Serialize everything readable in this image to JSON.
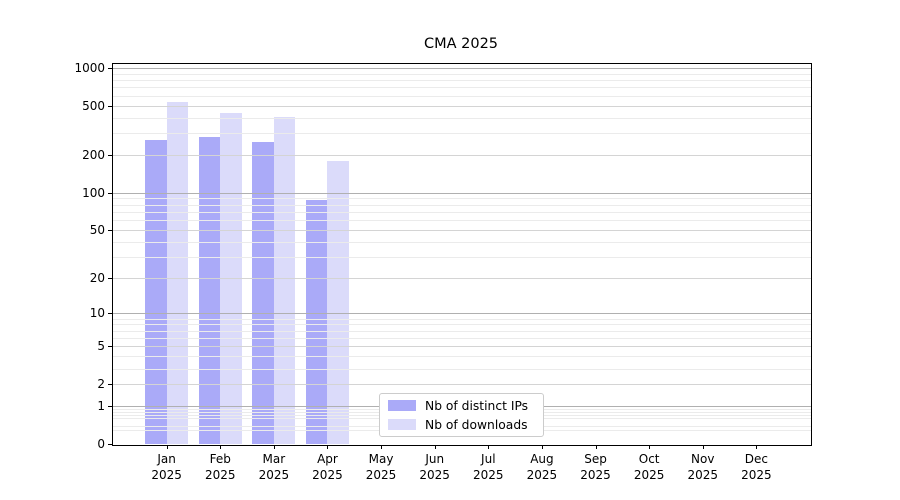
{
  "chart_data": {
    "type": "bar",
    "title": "CMA 2025",
    "categories": [
      "Jan 2025",
      "Feb 2025",
      "Mar 2025",
      "Apr 2025",
      "May 2025",
      "Jun 2025",
      "Jul 2025",
      "Aug 2025",
      "Sep 2025",
      "Oct 2025",
      "Nov 2025",
      "Dec 2025"
    ],
    "series": [
      {
        "name": "Nb of distinct IPs",
        "color": "#aaaaf8",
        "values": [
          265,
          280,
          255,
          88,
          0,
          0,
          0,
          0,
          0,
          0,
          0,
          0
        ]
      },
      {
        "name": "Nb of downloads",
        "color": "#dbdbfa",
        "values": [
          530,
          435,
          405,
          180,
          0,
          0,
          0,
          0,
          0,
          0,
          0,
          0
        ]
      }
    ],
    "y_axis": {
      "scale": "log1p",
      "tick_values": [
        0,
        1,
        2,
        5,
        10,
        20,
        50,
        100,
        200,
        500,
        1000
      ],
      "max": 1075
    },
    "grid": "horizontal",
    "legend": {
      "position": "lower-center",
      "entries": [
        "Nb of distinct IPs",
        "Nb of downloads"
      ]
    },
    "colors": {
      "bar_distinct_ips": "#aaaaf8",
      "bar_downloads": "#dbdbfa",
      "grid_power10": "#b0b0b0",
      "grid_labeled": "#d4d4d4",
      "grid_minor": "#ebebeb",
      "axis": "#000000",
      "legend_border": "#cccccc",
      "background": "#ffffff"
    }
  }
}
